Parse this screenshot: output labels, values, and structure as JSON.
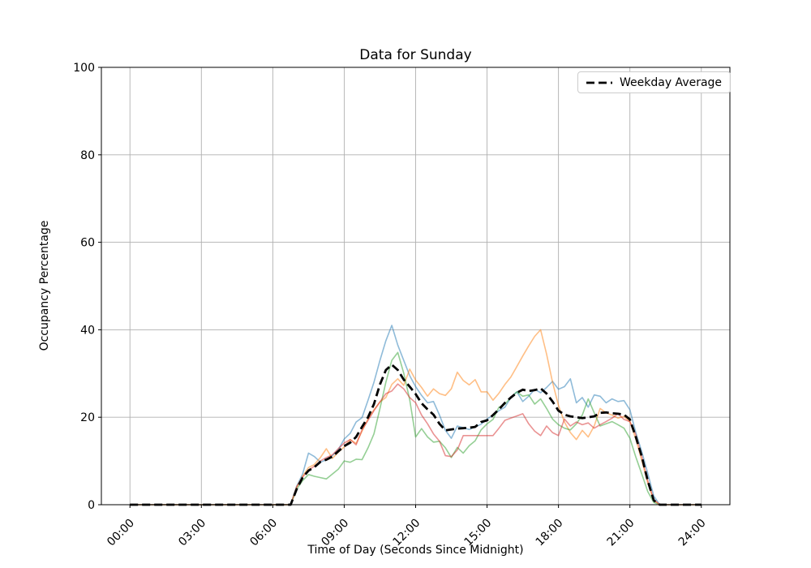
{
  "figure": {
    "title": "Data for Sunday",
    "xlabel": "Time of Day (Seconds Since Midnight)",
    "ylabel": "Occupancy Percentage",
    "legend": {
      "label": "Weekday Average",
      "line_style": "dashed",
      "color": "#000000"
    }
  },
  "chart_data": {
    "type": "line",
    "title": "Data for Sunday",
    "xlabel": "Time of Day (Seconds Since Midnight)",
    "ylabel": "Occupancy Percentage",
    "grid": true,
    "grid_color": "#b0b0b0",
    "legend_position": "upper right",
    "xlim_hours": [
      -1.2,
      25.2
    ],
    "ylim": [
      0,
      100
    ],
    "x_tick_hours": [
      0,
      3,
      6,
      9,
      12,
      15,
      18,
      21,
      24
    ],
    "x_tick_labels": [
      "00:00",
      "03:00",
      "06:00",
      "09:00",
      "12:00",
      "15:00",
      "18:00",
      "21:00",
      "24:00"
    ],
    "y_ticks": [
      0,
      20,
      40,
      60,
      80,
      100
    ],
    "y_tick_labels": [
      "0",
      "20",
      "40",
      "60",
      "80",
      "100"
    ],
    "x_hours": [
      0,
      0.25,
      0.5,
      0.75,
      1,
      1.25,
      1.5,
      1.75,
      2,
      2.25,
      2.5,
      2.75,
      3,
      3.25,
      3.5,
      3.75,
      4,
      4.25,
      4.5,
      4.75,
      5,
      5.25,
      5.5,
      5.75,
      6,
      6.25,
      6.5,
      6.75,
      7,
      7.25,
      7.5,
      7.75,
      8,
      8.25,
      8.5,
      8.75,
      9,
      9.25,
      9.5,
      9.75,
      10,
      10.25,
      10.5,
      10.75,
      11,
      11.25,
      11.5,
      11.75,
      12,
      12.25,
      12.5,
      12.75,
      13,
      13.25,
      13.5,
      13.75,
      14,
      14.25,
      14.5,
      14.75,
      15,
      15.25,
      15.5,
      15.75,
      16,
      16.25,
      16.5,
      16.75,
      17,
      17.25,
      17.5,
      17.75,
      18,
      18.25,
      18.5,
      18.75,
      19,
      19.25,
      19.5,
      19.75,
      20,
      20.25,
      20.5,
      20.75,
      21,
      21.25,
      21.5,
      21.75,
      22,
      22.25,
      22.5,
      22.75,
      23,
      23.25,
      23.5,
      23.75,
      24
    ],
    "series": [
      {
        "name": "sunday-line-1",
        "color": "#1f77b4",
        "alpha": 0.5,
        "width": 1.6,
        "dash": null,
        "values": [
          0,
          0,
          0,
          0,
          0,
          0,
          0,
          0,
          0,
          0,
          0,
          0,
          0,
          0,
          0,
          0,
          0,
          0,
          0,
          0,
          0,
          0,
          0,
          0,
          0,
          0,
          0,
          0,
          4.2,
          7.0,
          11.8,
          11.0,
          9.7,
          10.3,
          11.2,
          12.6,
          15.0,
          16.3,
          18.9,
          19.9,
          23.9,
          28.0,
          33.0,
          37.5,
          41.0,
          36.5,
          33.0,
          29.5,
          27.0,
          25.0,
          23.3,
          23.6,
          20.5,
          17.0,
          15.2,
          18.0,
          17.6,
          17.2,
          17.8,
          18.4,
          19.6,
          20.5,
          21.5,
          22.3,
          24.5,
          25.8,
          23.6,
          24.8,
          26.4,
          25.6,
          26.8,
          28.2,
          26.4,
          27.0,
          28.8,
          23.3,
          24.5,
          22.3,
          25.1,
          24.8,
          23.3,
          24.2,
          23.6,
          23.8,
          21.7,
          16.5,
          12.1,
          7.2,
          2.0,
          0,
          0,
          0,
          0,
          0,
          0,
          0,
          0
        ]
      },
      {
        "name": "sunday-line-2",
        "color": "#ff7f0e",
        "alpha": 0.5,
        "width": 1.6,
        "dash": null,
        "values": [
          0,
          0,
          0,
          0,
          0,
          0,
          0,
          0,
          0,
          0,
          0,
          0,
          0,
          0,
          0,
          0,
          0,
          0,
          0,
          0,
          0,
          0,
          0,
          0,
          0,
          0,
          0,
          0,
          4.0,
          6.5,
          8.5,
          9.2,
          10.8,
          12.8,
          10.6,
          12.0,
          13.2,
          14.9,
          14.0,
          16.8,
          19.6,
          21.7,
          23.5,
          24.5,
          27.5,
          28.8,
          27.3,
          31.0,
          28.5,
          26.8,
          24.8,
          26.5,
          25.4,
          25.0,
          26.5,
          30.3,
          28.4,
          27.4,
          28.6,
          25.8,
          25.8,
          23.9,
          25.5,
          27.5,
          29.2,
          31.6,
          34.0,
          36.3,
          38.5,
          40.0,
          34.4,
          28.0,
          22.7,
          18.9,
          16.5,
          14.9,
          17.0,
          15.5,
          18.0,
          22.0,
          21.0,
          20.5,
          19.8,
          20.2,
          19.0,
          15.0,
          10.0,
          5.0,
          1.0,
          0,
          0,
          0,
          0,
          0,
          0,
          0,
          0
        ]
      },
      {
        "name": "sunday-line-3",
        "color": "#2ca02c",
        "alpha": 0.5,
        "width": 1.6,
        "dash": null,
        "values": [
          0,
          0,
          0,
          0,
          0,
          0,
          0,
          0,
          0,
          0,
          0,
          0,
          0,
          0,
          0,
          0,
          0,
          0,
          0,
          0,
          0,
          0,
          0,
          0,
          0,
          0,
          0,
          0,
          3.5,
          5.5,
          6.9,
          6.5,
          6.2,
          5.9,
          7.0,
          8.1,
          10.0,
          9.7,
          10.4,
          10.3,
          13.0,
          16.2,
          22.0,
          28.0,
          33.0,
          34.8,
          30.1,
          24.0,
          15.5,
          17.4,
          15.5,
          14.3,
          14.5,
          13.0,
          10.8,
          13.1,
          11.8,
          13.5,
          14.6,
          17.1,
          18.5,
          19.5,
          22.3,
          23.0,
          24.5,
          25.8,
          24.8,
          25.1,
          23.0,
          24.2,
          22.0,
          19.6,
          18.3,
          17.5,
          17.1,
          18.5,
          20.5,
          24.2,
          21.0,
          18.0,
          18.5,
          19.0,
          18.3,
          17.5,
          15.2,
          10.9,
          7.0,
          3.0,
          0.5,
          0,
          0,
          0,
          0,
          0,
          0,
          0,
          0
        ]
      },
      {
        "name": "sunday-line-4",
        "color": "#d62728",
        "alpha": 0.5,
        "width": 1.6,
        "dash": null,
        "values": [
          0,
          0,
          0,
          0,
          0,
          0,
          0,
          0,
          0,
          0,
          0,
          0,
          0,
          0,
          0,
          0,
          0,
          0,
          0,
          0,
          0,
          0,
          0,
          0,
          0,
          0,
          0,
          0,
          4.0,
          6.3,
          7.9,
          8.8,
          10.0,
          10.8,
          11.4,
          12.8,
          14.1,
          14.9,
          13.7,
          17.1,
          19.3,
          21.5,
          23.5,
          25.4,
          26.0,
          27.6,
          26.5,
          24.5,
          23.3,
          20.5,
          18.5,
          16.2,
          14.5,
          11.2,
          11.0,
          12.5,
          15.8,
          15.8,
          15.8,
          15.8,
          15.8,
          15.8,
          17.5,
          19.3,
          19.8,
          20.3,
          20.8,
          18.5,
          16.8,
          15.8,
          18.0,
          16.5,
          15.8,
          19.6,
          18.0,
          18.9,
          18.3,
          18.7,
          17.5,
          18.3,
          19.0,
          19.8,
          20.8,
          19.5,
          19.0,
          16.0,
          11.0,
          5.5,
          1.2,
          0,
          0,
          0,
          0,
          0,
          0,
          0,
          0
        ]
      },
      {
        "name": "Weekday Average",
        "color": "#000000",
        "alpha": 1,
        "width": 2.8,
        "dash": "10 5",
        "values": [
          0,
          0,
          0,
          0,
          0,
          0,
          0,
          0,
          0,
          0,
          0,
          0,
          0,
          0,
          0,
          0,
          0,
          0,
          0,
          0,
          0,
          0,
          0,
          0,
          0,
          0,
          0,
          0,
          3.5,
          6.2,
          7.8,
          8.6,
          9.8,
          10.3,
          11.0,
          12.2,
          13.4,
          14.2,
          15.5,
          17.8,
          20.0,
          23.0,
          27.5,
          30.8,
          32.0,
          30.8,
          28.6,
          27.0,
          25.3,
          23.2,
          21.8,
          20.6,
          18.5,
          17.0,
          17.2,
          17.4,
          17.5,
          17.6,
          17.8,
          18.9,
          19.3,
          20.5,
          21.8,
          23.3,
          24.5,
          25.6,
          26.3,
          26.0,
          26.2,
          26.6,
          25.4,
          23.6,
          21.5,
          20.6,
          20.2,
          20.0,
          19.8,
          20.0,
          20.2,
          21.0,
          21.1,
          20.9,
          20.8,
          20.6,
          19.5,
          15.5,
          11.0,
          5.5,
          1.0,
          0,
          0,
          0,
          0,
          0,
          0,
          0,
          0
        ]
      }
    ]
  }
}
